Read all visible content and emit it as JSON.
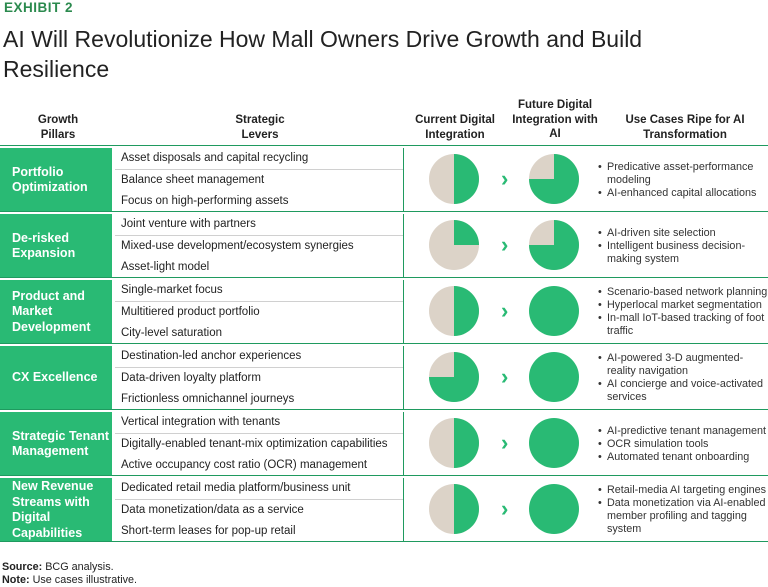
{
  "exhibit": "EXHIBIT 2",
  "title": "AI Will Revolutionize How Mall Owners Drive Growth and Build Resilience",
  "headers": {
    "pillars": "Growth Pillars",
    "levers": "Strategic Levers",
    "current": "Current Digital Integration",
    "future": "Future Digital Integration with AI",
    "uses": "Use Cases Ripe for AI Transformation"
  },
  "colors": {
    "green": "#29ba74",
    "beige": "#dcd3c8",
    "border": "#1f9a5f"
  },
  "rows": [
    {
      "pillar": "Portfolio Optimization",
      "levers": [
        "Asset disposals and capital recycling",
        "Balance sheet management",
        "Focus on high-performing assets"
      ],
      "current_pct": 50,
      "future_pct": 75,
      "uses": [
        "Predicative asset-performance modeling",
        "AI-enhanced capital allocations"
      ]
    },
    {
      "pillar": "De-risked Expansion",
      "levers": [
        "Joint venture with partners",
        "Mixed-use development/ecosystem synergies",
        "Asset-light model"
      ],
      "current_pct": 25,
      "future_pct": 75,
      "uses": [
        "AI-driven site selection",
        "Intelligent business decision-making system"
      ]
    },
    {
      "pillar": "Product and Market Development",
      "levers": [
        "Single-market focus",
        "Multitiered product portfolio",
        "City-level saturation"
      ],
      "current_pct": 50,
      "future_pct": 100,
      "uses": [
        "Scenario-based network planning",
        "Hyperlocal market segmentation",
        "In-mall IoT-based tracking of foot traffic"
      ]
    },
    {
      "pillar": "CX Excellence",
      "levers": [
        "Destination-led anchor experiences",
        "Data-driven loyalty platform",
        "Frictionless omnichannel journeys"
      ],
      "current_pct": 75,
      "future_pct": 100,
      "uses": [
        "AI-powered 3-D augmented-reality navigation",
        "AI concierge and voice-activated services"
      ]
    },
    {
      "pillar": "Strategic Tenant Management",
      "levers": [
        "Vertical integration with tenants",
        "Digitally-enabled tenant-mix optimization capabilities",
        "Active occupancy cost ratio (OCR) management"
      ],
      "current_pct": 50,
      "future_pct": 100,
      "uses": [
        "AI-predictive tenant management",
        "OCR simulation tools",
        "Automated tenant onboarding"
      ]
    },
    {
      "pillar": "New Revenue Streams with Digital Capabilities",
      "levers": [
        "Dedicated retail media platform/business unit",
        "Data monetization/data as a service",
        "Short-term leases for pop-up retail"
      ],
      "current_pct": 50,
      "future_pct": 100,
      "uses": [
        "Retail-media AI targeting engines",
        "Data monetization via AI-enabled member profiling and tagging system"
      ]
    }
  ],
  "footer": {
    "source_label": "Source:",
    "source_text": "BCG analysis.",
    "note_label": "Note:",
    "note_text": "Use cases illustrative."
  }
}
